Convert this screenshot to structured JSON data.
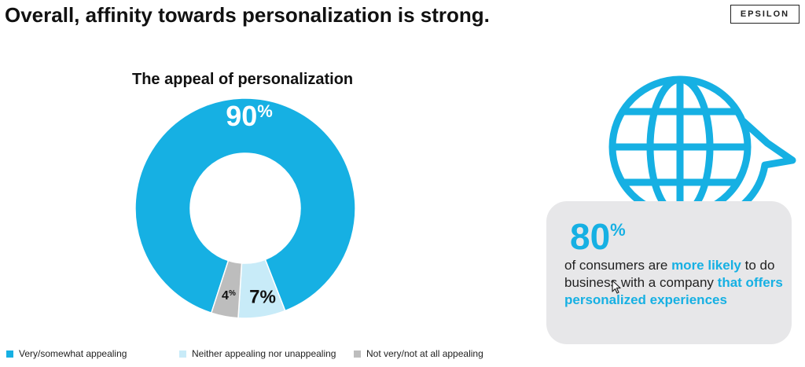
{
  "slide": {
    "title": "Overall, affinity towards personalization is strong.",
    "brand": "EPSILON"
  },
  "chart_data": {
    "type": "pie",
    "donut": true,
    "title": "The appeal of personalization",
    "categories": [
      "Very/somewhat appealing",
      "Neither appealing nor unappealing",
      "Not very/not at all appealing"
    ],
    "values": [
      90,
      7,
      4
    ],
    "value_labels": [
      {
        "num": "90",
        "pct": "%"
      },
      {
        "num": "7",
        "pct": "%"
      },
      {
        "num": "4",
        "pct": "%"
      }
    ],
    "colors": [
      "#16b0e3",
      "#c8ebf8",
      "#bdbdbd"
    ],
    "legend_position": "bottom"
  },
  "stat": {
    "value": "80",
    "unit": "%",
    "text_1": "of consumers are ",
    "text_2": "more likely",
    "text_3": " to do business with a company ",
    "text_4": "that offers personalized experiences",
    "accent_color": "#16b0e3"
  },
  "icons": [
    "globe-icon",
    "refresh-arrow-icon",
    "cursor-icon"
  ]
}
